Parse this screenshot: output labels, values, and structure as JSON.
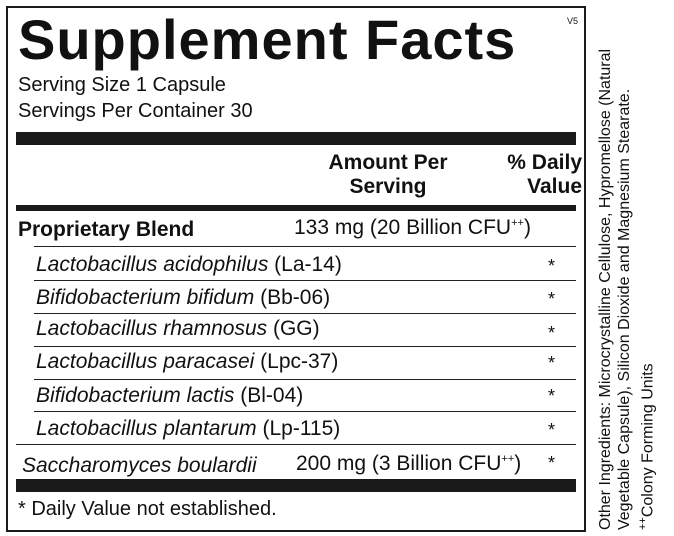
{
  "panel": {
    "title": "Supplement Facts",
    "version": "V5",
    "serving_size": "Serving Size 1 Capsule",
    "servings_per_container": "Servings Per Container 30"
  },
  "columns": {
    "amount_line1": "Amount Per",
    "amount_line2": "Serving",
    "dv_line1": "% Daily",
    "dv_line2": "Value"
  },
  "blend": {
    "name": "Proprietary Blend",
    "amount": "133 mg (20 Billion CFU",
    "amount_sup": "++",
    "amount_close": ")"
  },
  "strains": [
    {
      "species": "Lactobacillus acidophilus",
      "code": "(La-14)",
      "dv": "*"
    },
    {
      "species": "Bifidobacterium bifidum",
      "code": "(Bb-06)",
      "dv": "*"
    },
    {
      "species": "Lactobacillus rhamnosus",
      "code": "(GG)",
      "dv": "*"
    },
    {
      "species": "Lactobacillus paracasei",
      "code": "(Lpc-37)",
      "dv": "*"
    },
    {
      "species": "Bifidobacterium lactis",
      "code": "(Bl-04)",
      "dv": "*"
    },
    {
      "species": "Lactobacillus plantarum",
      "code": "(Lp-115)",
      "dv": "*"
    }
  ],
  "saccharomyces": {
    "name": "Saccharomyces boulardii",
    "amount": "200 mg (3 Billion CFU",
    "amount_sup": "++",
    "amount_close": ")",
    "dv": "*"
  },
  "footnote": "* Daily Value not established.",
  "other_ingredients": {
    "line1": "Other Ingredients: Microcrystalline Cellulose, Hypromellose (Natural",
    "line2": "Vegetable Capsule), Silicon Dioxide and Magnesium Stearate.",
    "cfu_sup": "++",
    "cfu_note": "Colony Forming Units"
  }
}
